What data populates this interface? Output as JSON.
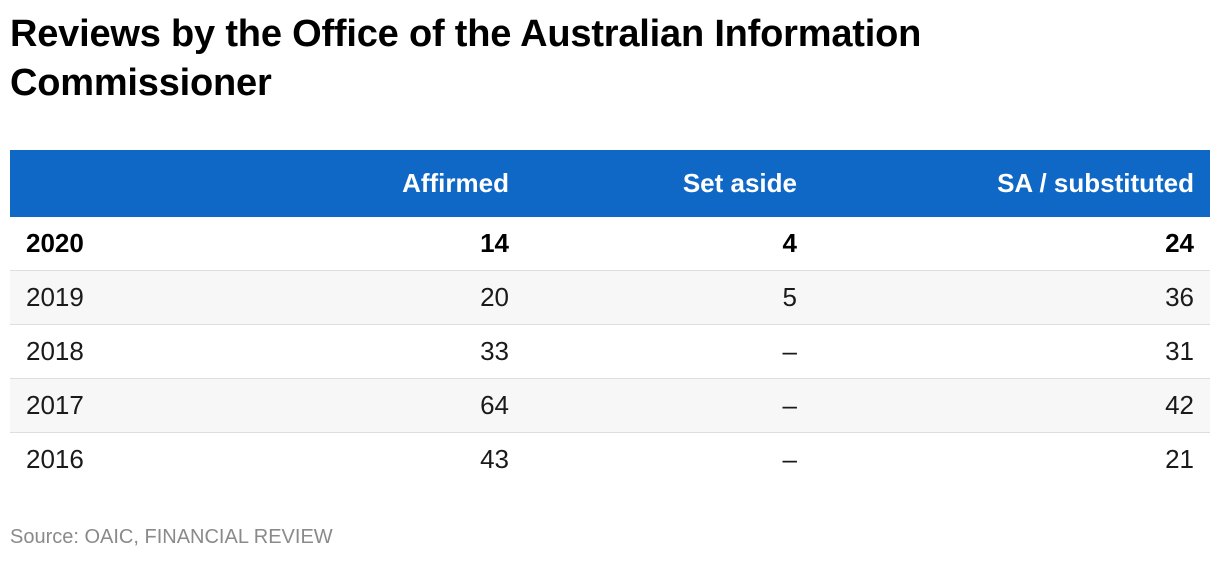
{
  "title": "Reviews by the Office of the Australian Information Commissioner",
  "source": "Source: OAIC, FINANCIAL REVIEW",
  "colors": {
    "header_bg": "#1068c6",
    "header_text": "#ffffff",
    "row_alt": "#f7f7f7",
    "source_text": "#8a8a8a"
  },
  "chart_data": {
    "type": "table",
    "title": "Reviews by the Office of the Australian Information Commissioner",
    "columns": [
      "",
      "Affirmed",
      "Set aside",
      "SA / substituted"
    ],
    "rows": [
      {
        "year": "2020",
        "affirmed": "14",
        "set_aside": "4",
        "substituted": "24",
        "bold": true
      },
      {
        "year": "2019",
        "affirmed": "20",
        "set_aside": "5",
        "substituted": "36",
        "bold": false
      },
      {
        "year": "2018",
        "affirmed": "33",
        "set_aside": "–",
        "substituted": "31",
        "bold": false
      },
      {
        "year": "2017",
        "affirmed": "64",
        "set_aside": "–",
        "substituted": "42",
        "bold": false
      },
      {
        "year": "2016",
        "affirmed": "43",
        "set_aside": "–",
        "substituted": "21",
        "bold": false
      }
    ],
    "source": "Source: OAIC, FINANCIAL REVIEW"
  }
}
